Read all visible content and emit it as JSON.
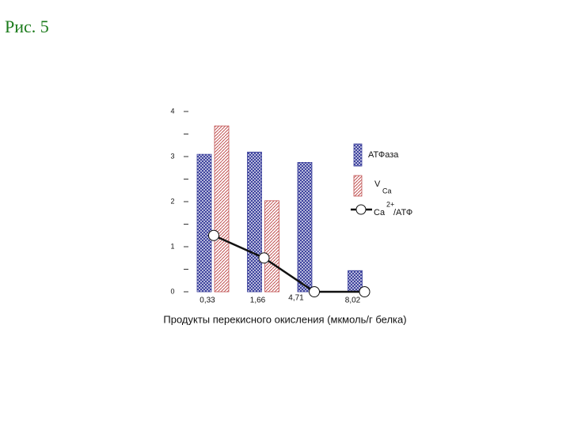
{
  "header": "Рис. 5",
  "chart_data": {
    "type": "bar",
    "xlabel": "Продукты перекисного окисления (мкмоль/г белка)",
    "categories": [
      "0,33",
      "1,66",
      "4,71",
      "8,02"
    ],
    "series": [
      {
        "name": "АТФаза",
        "color": "#3a3f9c",
        "values": [
          3.05,
          3.1,
          2.87,
          0.47
        ]
      },
      {
        "name": "V",
        "name_sub": "Ca",
        "color": "#c05050",
        "values": [
          3.68,
          2.02,
          null,
          null
        ]
      },
      {
        "name": "Ca",
        "name_sup": "2+",
        "name_rest": "/АТФ",
        "type": "line",
        "color": "#111111",
        "values": [
          1.25,
          0.75,
          0,
          0
        ]
      }
    ],
    "ylim": [
      0,
      4
    ],
    "yticks": [
      0,
      1,
      2,
      3,
      4
    ],
    "minor_yticks": [
      0.5,
      1.5,
      2.5,
      3.5
    ]
  }
}
